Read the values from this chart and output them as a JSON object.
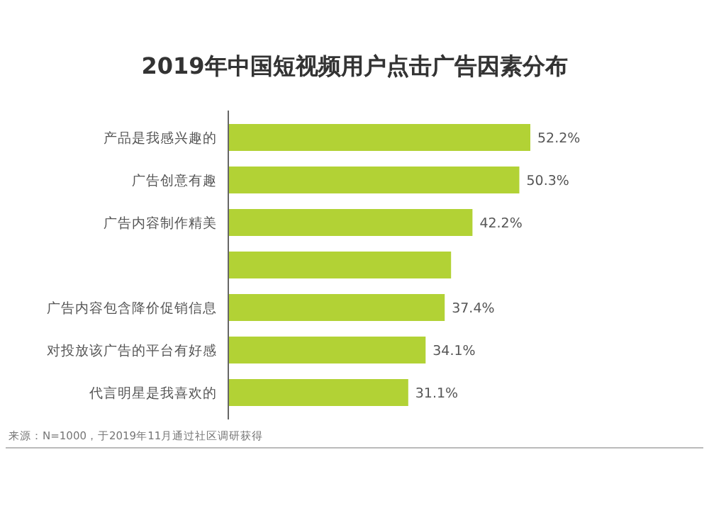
{
  "chart_data": {
    "type": "bar",
    "orientation": "horizontal",
    "title": "2019年中国短视频用户点击广告因素分布",
    "categories": [
      "产品是我感兴趣的",
      "广告创意有趣",
      "广告内容制作精美",
      null,
      "广告内容包含降价促销信息",
      "对投放该广告的平台有好感",
      "代言明星是我喜欢的"
    ],
    "values": [
      52.2,
      50.3,
      42.2,
      38.5,
      37.4,
      34.1,
      31.1
    ],
    "value_labels": [
      "52.2%",
      "50.3%",
      "42.2%",
      null,
      "37.4%",
      "34.1%",
      "31.1%"
    ],
    "color": "#b2d235",
    "annotations": [
      "来源：N=1000，于2019年11月通过社区调研获得"
    ]
  }
}
